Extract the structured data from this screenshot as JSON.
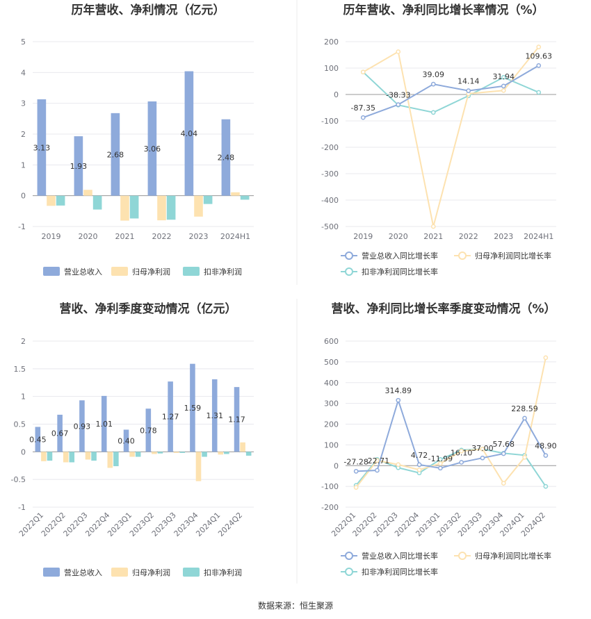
{
  "source": "数据来源：恒生聚源",
  "colors": {
    "revenue": "#8eaadb",
    "net_profit": "#fde2b0",
    "deducted_profit": "#8fd6d6",
    "gridline": "#e8e8ee",
    "axis": "#6e7079"
  },
  "chart_data": [
    {
      "type": "bar",
      "title": "历年营收、净利情况（亿元）",
      "categories": [
        "2019",
        "2020",
        "2021",
        "2022",
        "2023",
        "2024H1"
      ],
      "ylim": [
        -1,
        5
      ],
      "yticks": [
        "-1",
        "0",
        "1",
        "2",
        "3",
        "4",
        "5"
      ],
      "series": [
        {
          "name": "营业总收入",
          "values": [
            3.13,
            1.93,
            2.68,
            3.06,
            4.04,
            2.48
          ],
          "labels": [
            "3.13",
            "1.93",
            "2.68",
            "3.06",
            "4.04",
            "2.48"
          ]
        },
        {
          "name": "归母净利润",
          "values": [
            -0.33,
            0.19,
            -0.81,
            -0.8,
            -0.68,
            0.11
          ]
        },
        {
          "name": "扣非净利润",
          "values": [
            -0.32,
            -0.45,
            -0.74,
            -0.78,
            -0.27,
            -0.13
          ]
        }
      ],
      "legend": "bottom"
    },
    {
      "type": "line",
      "title": "历年营收、净利同比增长率情况（%）",
      "categories": [
        "2019",
        "2020",
        "2021",
        "2022",
        "2023",
        "2024H1"
      ],
      "ylim": [
        -500,
        200
      ],
      "yticks": [
        "-500",
        "-400",
        "-300",
        "-200",
        "-100",
        "0",
        "100",
        "200"
      ],
      "series": [
        {
          "name": "营业总收入同比增长率",
          "values": [
            -87.35,
            -38.33,
            39.09,
            14.14,
            31.94,
            109.63
          ],
          "labels": [
            "-87.35",
            "-38.33",
            "39.09",
            "14.14",
            "31.94",
            "109.63"
          ]
        },
        {
          "name": "归母净利润同比增长率",
          "values": [
            85,
            162,
            -500,
            3,
            15,
            180
          ]
        },
        {
          "name": "扣非净利润同比增长率",
          "values": [
            85,
            -40,
            -68,
            -5,
            65,
            8
          ]
        }
      ],
      "legend": "bottom"
    },
    {
      "type": "bar",
      "title": "营收、净利季度变动情况（亿元）",
      "categories": [
        "2022Q1",
        "2022Q2",
        "2022Q3",
        "2022Q4",
        "2023Q1",
        "2023Q2",
        "2023Q3",
        "2023Q4",
        "2024Q1",
        "2024Q2"
      ],
      "ylim": [
        -1,
        2
      ],
      "yticks": [
        "-1",
        "-0.5",
        "0",
        "0.5",
        "1",
        "1.5",
        "2"
      ],
      "series": [
        {
          "name": "营业总收入",
          "values": [
            0.45,
            0.67,
            0.93,
            1.01,
            0.4,
            0.78,
            1.27,
            1.59,
            1.31,
            1.17
          ],
          "labels": [
            "0.45",
            "0.67",
            "0.93",
            "1.01",
            "0.40",
            "0.78",
            "1.27",
            "1.59",
            "1.31",
            "1.17"
          ]
        },
        {
          "name": "归母净利润",
          "values": [
            -0.17,
            -0.19,
            -0.14,
            -0.29,
            -0.09,
            -0.04,
            -0.02,
            -0.53,
            -0.05,
            0.17
          ]
        },
        {
          "name": "扣非净利润",
          "values": [
            -0.16,
            -0.19,
            -0.16,
            -0.26,
            -0.09,
            -0.03,
            -0.02,
            -0.09,
            -0.04,
            -0.07
          ]
        }
      ],
      "legend": "bottom"
    },
    {
      "type": "line",
      "title": "营收、净利同比增长率季度变动情况（%）",
      "categories": [
        "2022Q1",
        "2022Q2",
        "2022Q3",
        "2022Q4",
        "2023Q1",
        "2023Q2",
        "2023Q3",
        "2023Q4",
        "2024Q1",
        "2024Q2"
      ],
      "ylim": [
        -200,
        600
      ],
      "yticks": [
        "-200",
        "-100",
        "0",
        "100",
        "200",
        "300",
        "400",
        "500",
        "600"
      ],
      "series": [
        {
          "name": "营业总收入同比增长率",
          "values": [
            -27.28,
            -22.71,
            314.89,
            4.72,
            -11.99,
            16.1,
            37.0,
            57.68,
            228.59,
            48.9
          ],
          "labels": [
            "-27.28",
            "-22.71",
            "314.89",
            "4.72",
            "-11.99",
            "16.10",
            "37.00",
            "57.68",
            "228.59",
            "48.90"
          ]
        },
        {
          "name": "归母净利润同比增长率",
          "values": [
            -105,
            25,
            5,
            -20,
            10,
            70,
            80,
            -85,
            40,
            520
          ]
        },
        {
          "name": "扣非净利润同比增长率",
          "values": [
            -95,
            30,
            -10,
            -35,
            30,
            75,
            80,
            60,
            50,
            -100
          ]
        }
      ],
      "legend": "bottom"
    }
  ]
}
